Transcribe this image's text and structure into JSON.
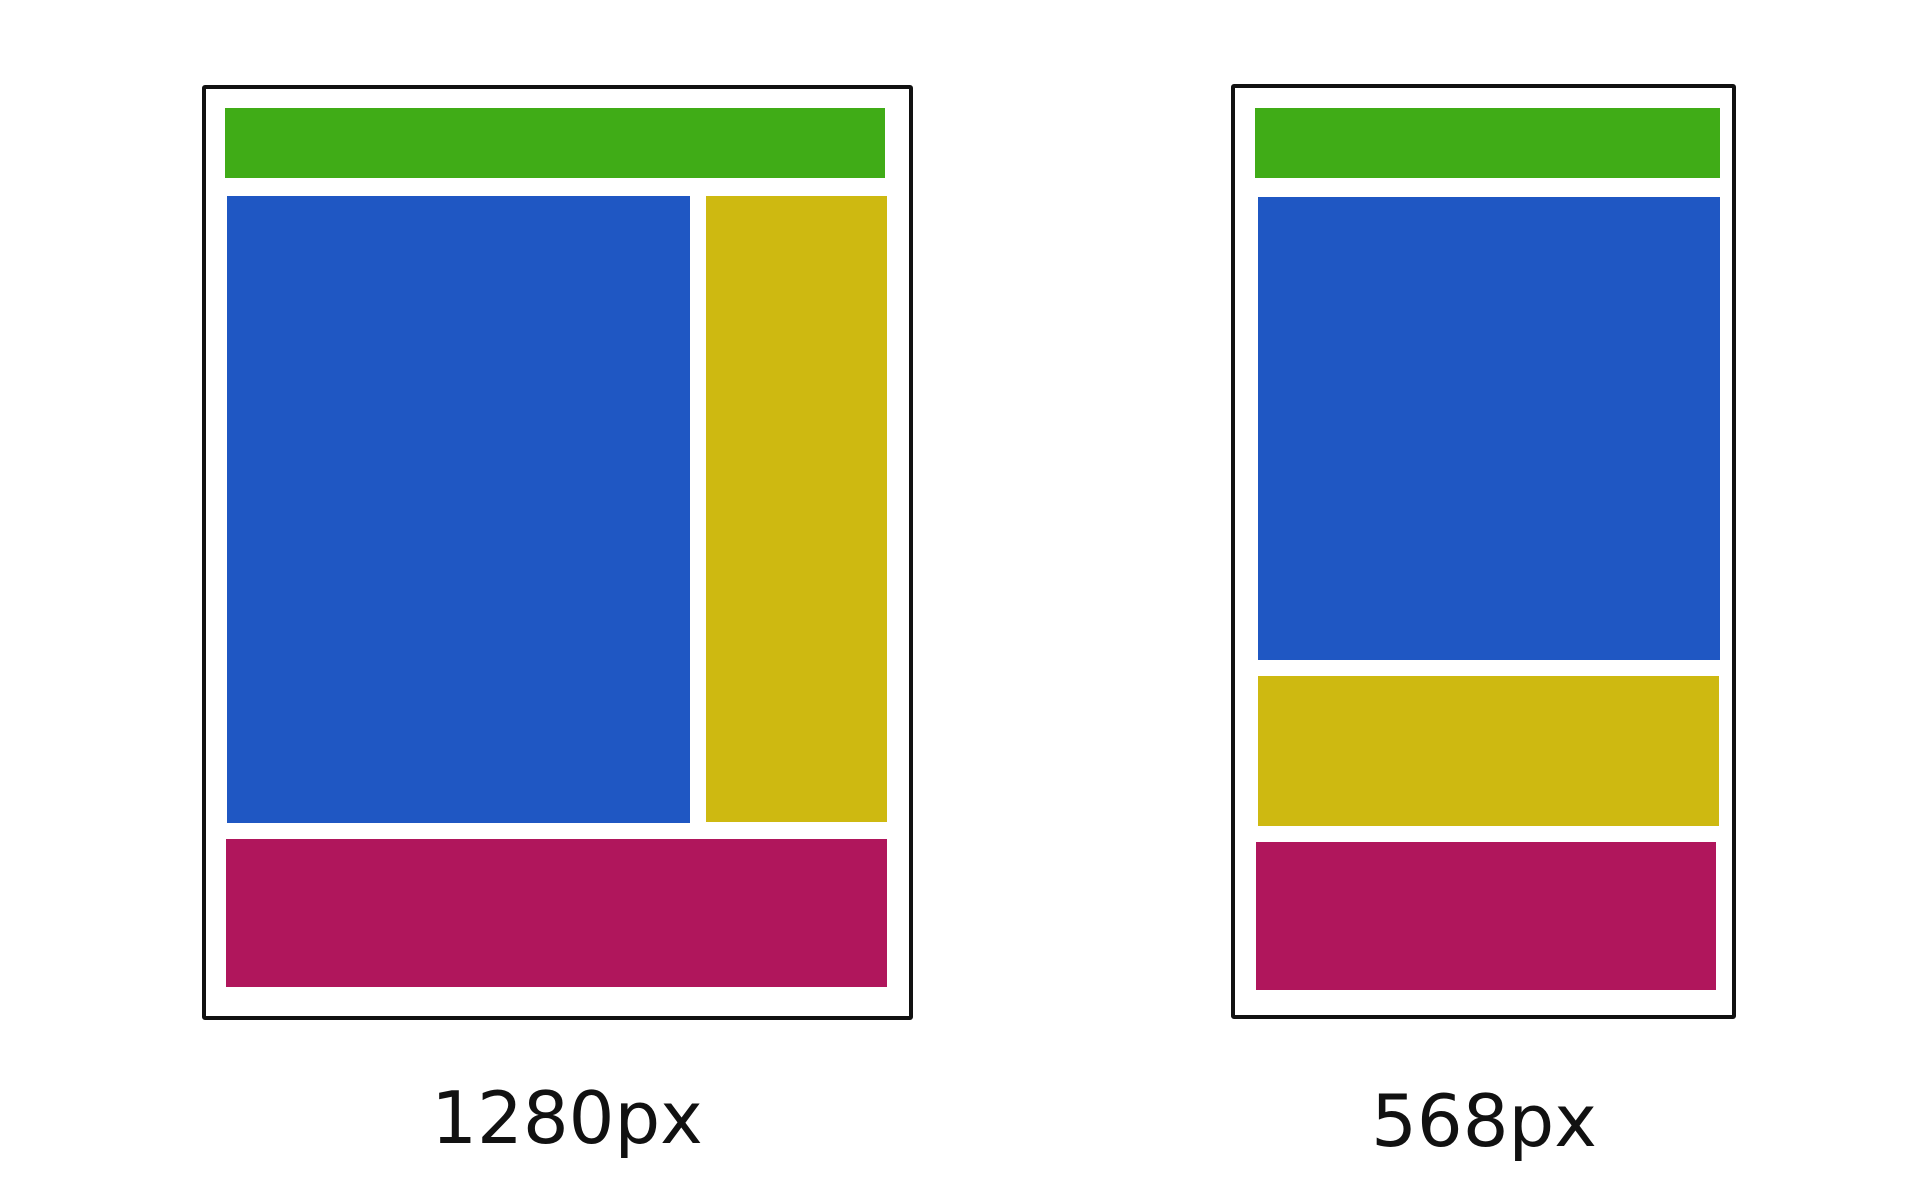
{
  "colors": {
    "header": "#40AC17",
    "main": "#1F57C3",
    "sidebar": "#CEB911",
    "footer": "#B0165C",
    "frame": "#111111",
    "background": "#FFFFFF"
  },
  "layouts": [
    {
      "caption": "1280px"
    },
    {
      "caption": "568px"
    }
  ]
}
